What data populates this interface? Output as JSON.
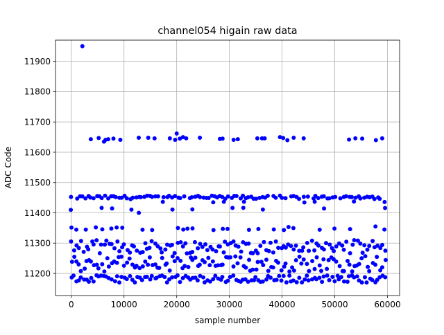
{
  "chart_data": {
    "type": "scatter",
    "title": "channel054 higain raw data",
    "xlabel": "sample number",
    "ylabel": "ADC Code",
    "xlim": [
      -3000,
      62300
    ],
    "ylim": [
      11127,
      11970
    ],
    "xticks": [
      0,
      10000,
      20000,
      30000,
      40000,
      50000,
      60000
    ],
    "yticks": [
      11200,
      11300,
      11400,
      11500,
      11600,
      11700,
      11800,
      11900
    ],
    "grid": true,
    "marker_color": "#0000ff",
    "series": [
      {
        "points": [
          [
            2100,
            11950
          ],
          [
            3700,
            11643
          ],
          [
            5200,
            11647
          ],
          [
            6200,
            11635
          ],
          [
            6500,
            11641
          ],
          [
            7000,
            11643
          ],
          [
            8000,
            11645
          ],
          [
            9300,
            11641
          ],
          [
            12800,
            11648
          ],
          [
            14600,
            11648
          ],
          [
            15800,
            11646
          ],
          [
            18700,
            11646
          ],
          [
            19700,
            11641
          ],
          [
            20000,
            11662
          ],
          [
            20600,
            11645
          ],
          [
            21200,
            11650
          ],
          [
            21800,
            11646
          ],
          [
            24400,
            11648
          ],
          [
            28200,
            11644
          ],
          [
            28700,
            11645
          ],
          [
            30800,
            11641
          ],
          [
            31600,
            11643
          ],
          [
            35300,
            11646
          ],
          [
            36200,
            11646
          ],
          [
            36700,
            11646
          ],
          [
            39600,
            11650
          ],
          [
            40200,
            11647
          ],
          [
            41000,
            11640
          ],
          [
            42200,
            11648
          ],
          [
            44100,
            11646
          ],
          [
            52700,
            11642
          ],
          [
            53900,
            11646
          ],
          [
            55200,
            11645
          ],
          [
            57800,
            11640
          ],
          [
            59000,
            11646
          ]
        ],
        "bands": [
          {
            "center": 11451,
            "spread": 6,
            "density": 0.9
          },
          {
            "center": 11437,
            "spread": 3,
            "density": 0.25
          },
          {
            "center": 11413,
            "spread": 4,
            "density": 0.25
          },
          {
            "center": 11401,
            "spread": 3,
            "density": 0.15
          },
          {
            "center": 11349,
            "spread": 6,
            "density": 0.5
          },
          {
            "center": 11288,
            "spread": 22,
            "density": 1.0
          },
          {
            "center": 11232,
            "spread": 26,
            "density": 1.0
          },
          {
            "center": 11182,
            "spread": 12,
            "density": 1.0
          }
        ],
        "x_range": [
          0,
          59600
        ]
      }
    ]
  }
}
